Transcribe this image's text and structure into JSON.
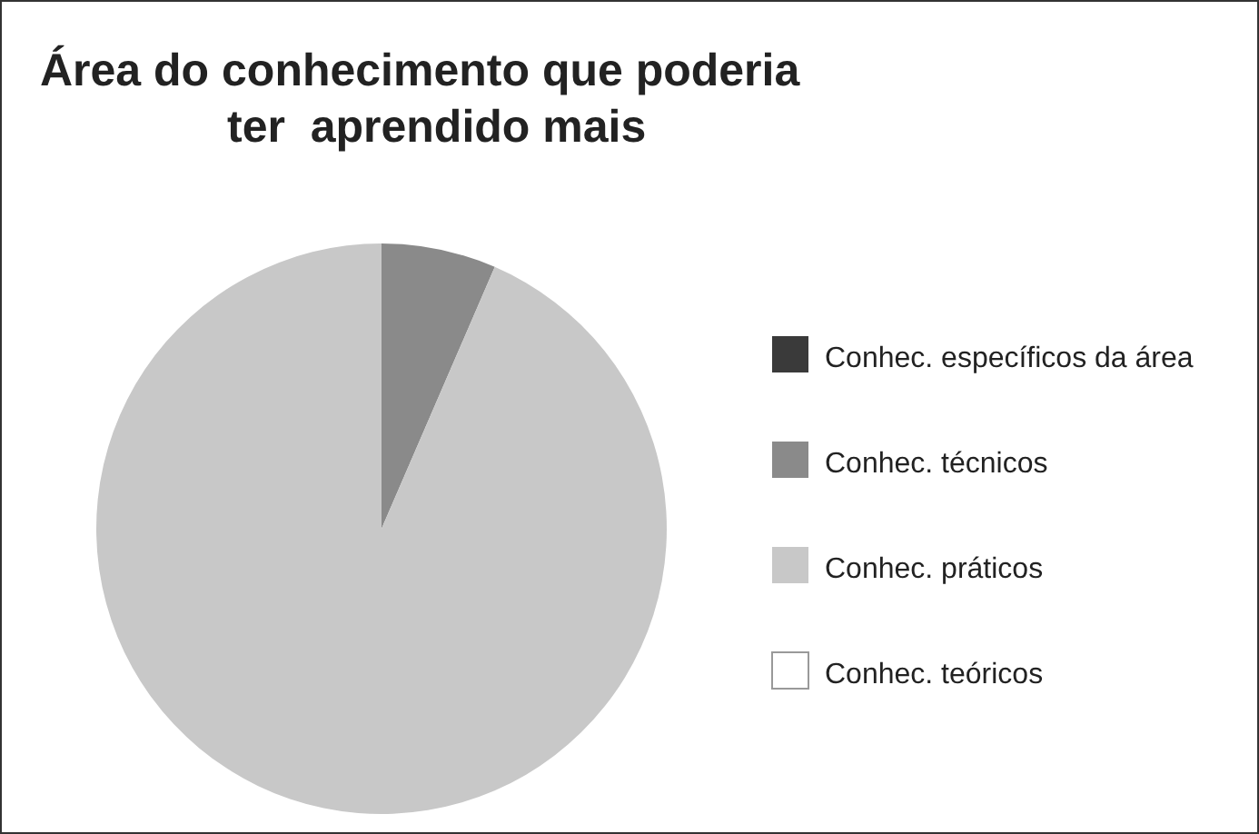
{
  "chart_data": {
    "type": "pie",
    "title": "Área do conhecimento que poderia\nter  aprendido mais",
    "categories": [
      "Conhec. específicos da área",
      "Conhec. técnicos",
      "Conhec. práticos",
      "Conhec. teóricos"
    ],
    "values": [
      0,
      6.5,
      93.5,
      0
    ],
    "colors": [
      "#3a3a3a",
      "#8a8a8a",
      "#c8c8c8",
      "#ffffff"
    ],
    "legend": "right"
  }
}
